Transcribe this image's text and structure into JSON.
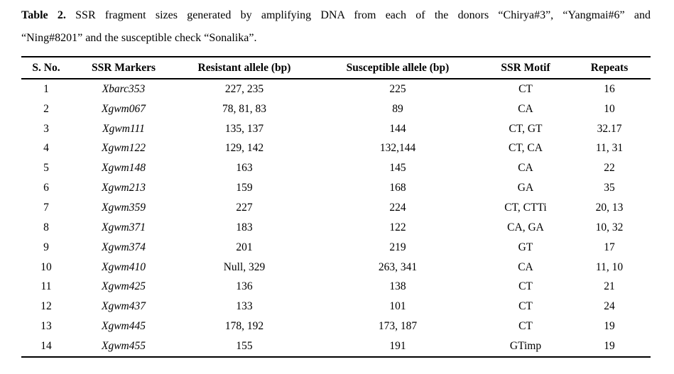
{
  "caption": {
    "label": "Table 2.",
    "line1_rest": "SSR fragment sizes generated by amplifying DNA from each of the donors “Chirya#3”, “Yangmai#6” and",
    "line2": "“Ning#8201” and the susceptible check “Sonalika”."
  },
  "table": {
    "columns": [
      "S. No.",
      "SSR Markers",
      "Resistant allele (bp)",
      "Susceptible allele (bp)",
      "SSR Motif",
      "Repeats"
    ],
    "rows": [
      [
        "1",
        "Xbarc353",
        "227, 235",
        "225",
        "CT",
        "16"
      ],
      [
        "2",
        "Xgwm067",
        "78, 81, 83",
        "89",
        "CA",
        "10"
      ],
      [
        "3",
        "Xgwm111",
        "135, 137",
        "144",
        "CT, GT",
        "32.17"
      ],
      [
        "4",
        "Xgwm122",
        "129, 142",
        "132,144",
        "CT, CA",
        "11, 31"
      ],
      [
        "5",
        "Xgwm148",
        "163",
        "145",
        "CA",
        "22"
      ],
      [
        "6",
        "Xgwm213",
        "159",
        "168",
        "GA",
        "35"
      ],
      [
        "7",
        "Xgwm359",
        "227",
        "224",
        "CT, CTTi",
        "20, 13"
      ],
      [
        "8",
        "Xgwm371",
        "183",
        "122",
        "CA, GA",
        "10, 32"
      ],
      [
        "9",
        "Xgwm374",
        "201",
        "219",
        "GT",
        "17"
      ],
      [
        "10",
        "Xgwm410",
        "Null, 329",
        "263, 341",
        "CA",
        "11, 10"
      ],
      [
        "11",
        "Xgwm425",
        "136",
        "138",
        "CT",
        "21"
      ],
      [
        "12",
        "Xgwm437",
        "133",
        "101",
        "CT",
        "24"
      ],
      [
        "13",
        "Xgwm445",
        "178, 192",
        "173, 187",
        "CT",
        "19"
      ],
      [
        "14",
        "Xgwm455",
        "155",
        "191",
        "GTimp",
        "19"
      ]
    ]
  },
  "colors": {
    "text": "#000000",
    "background": "#ffffff",
    "rule": "#000000"
  }
}
